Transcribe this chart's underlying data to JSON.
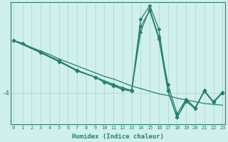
{
  "xlabel": "Humidex (Indice chaleur)",
  "bg_color": "#cff0ec",
  "line_color": "#2a7d6e",
  "grid_color": "#b0d8d2",
  "ytick_label": "-4",
  "ytick_val": -4.0,
  "xlim": [
    -0.3,
    23.3
  ],
  "ylim": [
    -5.8,
    1.2
  ],
  "xticks": [
    0,
    1,
    2,
    3,
    4,
    5,
    6,
    7,
    8,
    9,
    10,
    11,
    12,
    13,
    14,
    15,
    16,
    17,
    18,
    19,
    20,
    21,
    22,
    23
  ],
  "trend_line": [
    [
      0,
      -1.0,
      23,
      -4.55
    ]
  ],
  "lines": [
    {
      "x": [
        0,
        1,
        2,
        3,
        4,
        5,
        6,
        7,
        8,
        9,
        10,
        11,
        12,
        13,
        14,
        15,
        16,
        17,
        18,
        19,
        20,
        21,
        22,
        23
      ],
      "y": [
        -1.0,
        -1.2,
        -1.4,
        -1.6,
        -1.8,
        -2.05,
        -2.25,
        -2.45,
        -2.65,
        -2.85,
        -3.05,
        -3.2,
        -3.4,
        -3.6,
        -3.75,
        -3.9,
        -4.05,
        -4.15,
        -4.3,
        -4.4,
        -4.5,
        -4.6,
        -4.65,
        -4.7
      ],
      "markers": false
    },
    {
      "x": [
        0,
        1,
        3,
        5,
        7,
        9,
        10,
        11,
        12,
        13,
        14,
        15,
        16,
        17,
        18,
        19,
        20,
        21,
        22,
        23
      ],
      "y": [
        -1.0,
        -1.15,
        -1.7,
        -2.2,
        -2.75,
        -3.1,
        -3.4,
        -3.6,
        -3.8,
        -3.9,
        -0.5,
        0.8,
        -0.8,
        -3.5,
        -5.2,
        -4.35,
        -4.85,
        -3.85,
        -4.5,
        -3.95
      ],
      "markers": true
    },
    {
      "x": [
        0,
        3,
        5,
        7,
        9,
        11,
        12,
        13,
        14,
        15,
        16,
        17,
        18,
        19,
        20,
        21,
        22,
        23
      ],
      "y": [
        -1.0,
        -1.65,
        -2.15,
        -2.7,
        -3.1,
        -3.55,
        -3.75,
        -3.9,
        0.2,
        1.0,
        -0.35,
        -3.85,
        -5.4,
        -4.5,
        -4.9,
        -3.9,
        -4.55,
        -4.0
      ],
      "markers": true
    },
    {
      "x": [
        0,
        3,
        5,
        7,
        9,
        11,
        12,
        13,
        14,
        15,
        16,
        17,
        18,
        19,
        20,
        21,
        22,
        23
      ],
      "y": [
        -1.0,
        -1.7,
        -2.2,
        -2.7,
        -3.1,
        -3.5,
        -3.7,
        -3.85,
        -0.2,
        0.7,
        -0.9,
        -3.9,
        -5.4,
        -4.4,
        -4.85,
        -3.9,
        -4.5,
        -4.0
      ],
      "markers": true
    }
  ]
}
